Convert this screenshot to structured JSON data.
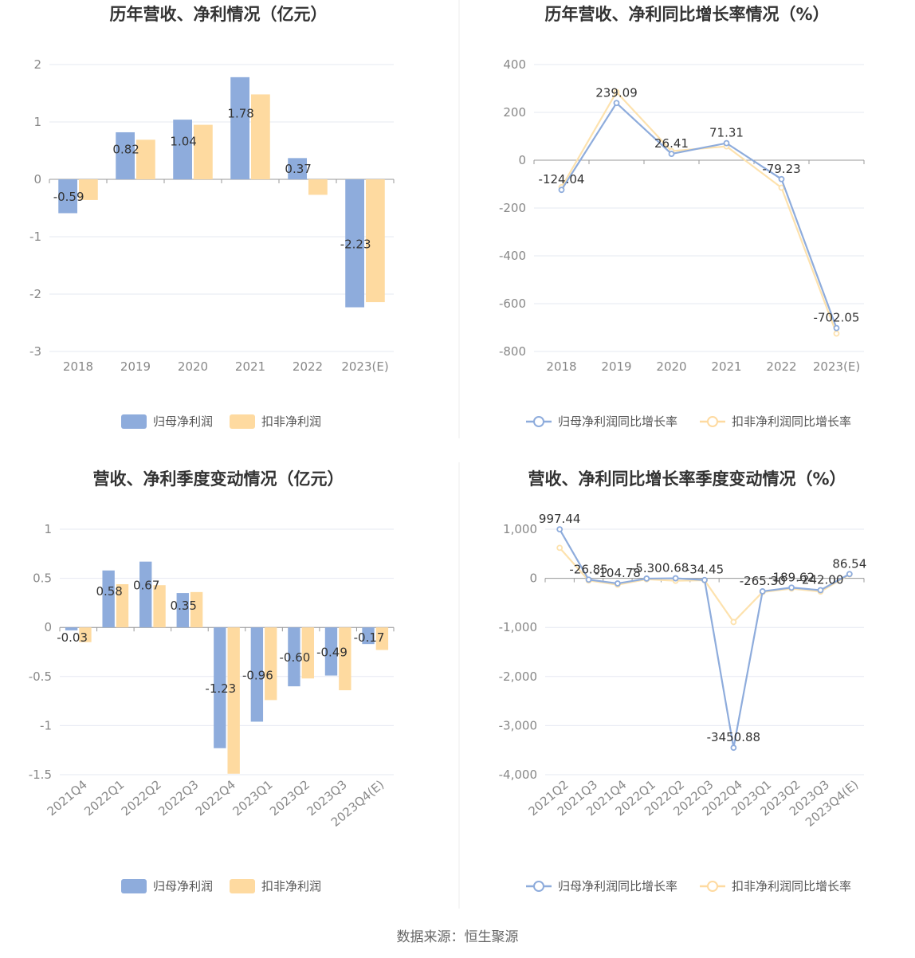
{
  "source_text": "数据来源：恒生聚源",
  "colors": {
    "primary": "#8eacdc",
    "secondary": "#fedaa0",
    "primary_line": "#8eacdc",
    "secondary_line": "#fde2ae"
  },
  "chart_data": [
    {
      "type": "bar",
      "title": "历年营收、净利情况（亿元）",
      "categories": [
        "2018",
        "2019",
        "2020",
        "2021",
        "2022",
        "2023(E)"
      ],
      "ylim": [
        -3,
        2
      ],
      "yticks": [
        "2",
        "1",
        "0",
        "-1",
        "-2",
        "-3"
      ],
      "series": [
        {
          "name": "归母净利润",
          "values": [
            -0.59,
            0.82,
            1.04,
            1.78,
            0.37,
            -2.23
          ],
          "labels": [
            "-0.59",
            "0.82",
            "1.04",
            "1.78",
            "0.37",
            "-2.23"
          ]
        },
        {
          "name": "扣非净利润",
          "values": [
            -0.36,
            0.69,
            0.95,
            1.48,
            -0.27,
            -2.14
          ]
        }
      ],
      "legend": "bottom",
      "grid": true
    },
    {
      "type": "line",
      "title": "历年营收、净利同比增长率情况（%）",
      "categories": [
        "2018",
        "2019",
        "2020",
        "2021",
        "2022",
        "2023(E)"
      ],
      "ylim": [
        -800,
        400
      ],
      "yticks": [
        "400",
        "200",
        "0",
        "-200",
        "-400",
        "-600",
        "-800"
      ],
      "series": [
        {
          "name": "归母净利润同比增长率",
          "values": [
            -124.04,
            239.09,
            26.41,
            71.31,
            -79.23,
            -702.05
          ],
          "labels": [
            "-124.04",
            "239.09",
            "26.41",
            "71.31",
            "-79.23",
            "-702.05"
          ]
        },
        {
          "name": "扣非净利润同比增长率",
          "values": [
            -113,
            285,
            38,
            58,
            -115,
            -725
          ]
        }
      ],
      "legend": "bottom",
      "grid": true
    },
    {
      "type": "bar",
      "title": "营收、净利季度变动情况（亿元）",
      "categories": [
        "2021Q4",
        "2022Q1",
        "2022Q2",
        "2022Q3",
        "2022Q4",
        "2023Q1",
        "2023Q2",
        "2023Q3",
        "2023Q4(E)"
      ],
      "ylim": [
        -1.5,
        1
      ],
      "yticks": [
        "1",
        "0.5",
        "0",
        "-0.5",
        "-1",
        "-1.5"
      ],
      "series": [
        {
          "name": "归母净利润",
          "values": [
            -0.03,
            0.58,
            0.67,
            0.35,
            -1.23,
            -0.96,
            -0.6,
            -0.49,
            -0.17
          ],
          "labels": [
            "-0.03",
            "0.58",
            "0.67",
            "0.35",
            "-1.23",
            "-0.96",
            "-0.60",
            "-0.49",
            "-0.17"
          ]
        },
        {
          "name": "扣非净利润",
          "values": [
            -0.15,
            0.44,
            0.43,
            0.36,
            -1.49,
            -0.74,
            -0.52,
            -0.64,
            -0.23
          ]
        }
      ],
      "legend": "bottom",
      "grid": true
    },
    {
      "type": "line",
      "title": "营收、净利同比增长率季度变动情况（%）",
      "categories": [
        "2021Q2",
        "2021Q3",
        "2021Q4",
        "2022Q1",
        "2022Q2",
        "2022Q3",
        "2022Q4",
        "2023Q1",
        "2023Q2",
        "2023Q3",
        "2023Q4(E)"
      ],
      "ylim": [
        -4000,
        1000
      ],
      "yticks": [
        "1,000",
        "0",
        "-1,000",
        "-2,000",
        "-3,000",
        "-4,000"
      ],
      "series": [
        {
          "name": "归母净利润同比增长率",
          "values": [
            997.44,
            -26.85,
            -104.78,
            -5.3,
            0.68,
            -34.45,
            -3450.88,
            -265.3,
            -189.62,
            -242.0,
            86.54
          ],
          "labels": [
            "997.44",
            "-26.85",
            "-104.78",
            "-5.30",
            "0.68",
            "-34.45",
            "-3450.88",
            "-265.30",
            "-189.62",
            "-242.00",
            "86.54"
          ]
        },
        {
          "name": "扣非净利润同比增长率",
          "values": [
            620,
            -45,
            -130,
            -20,
            -50,
            -40,
            -890,
            -280,
            -210,
            -270,
            80
          ]
        }
      ],
      "legend": "bottom",
      "grid": true
    }
  ]
}
